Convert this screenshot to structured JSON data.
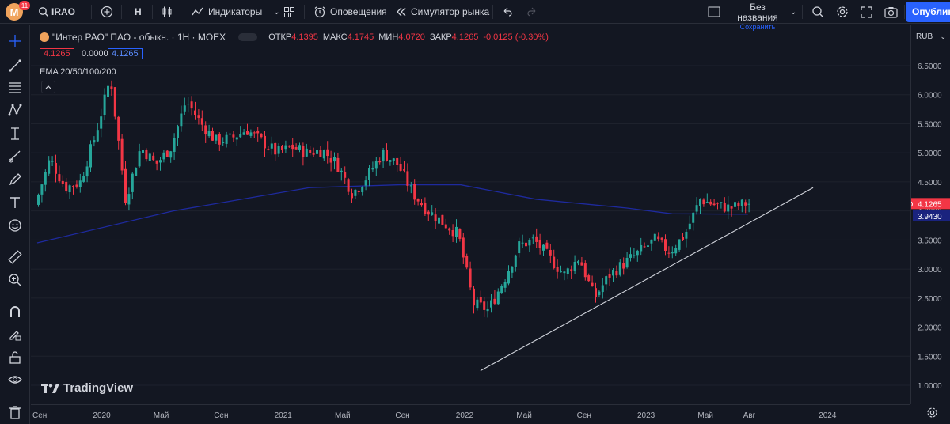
{
  "app": {
    "logo_letter": "M",
    "notif_count": "11",
    "symbol": "IRAO",
    "interval": "H",
    "indicators_label": "Индикаторы",
    "alerts_label": "Оповещения",
    "replay_label": "Симулятор рынка",
    "layout_name": "Без названия",
    "save_label": "Сохранить",
    "publish_label": "Опубликовать"
  },
  "legend": {
    "title": "\"Интер РАО\" ПАО - обыкн. · 1H · MOEX",
    "open_label": "ОТКР",
    "open": "4.1395",
    "high_label": "МАКС",
    "high": "4.1745",
    "low_label": "МИН",
    "low": "4.0720",
    "close_label": "ЗАКР",
    "close": "4.1265",
    "change": "-0.0125 (-0.30%)",
    "bid": "4.1265",
    "spread": "0.0000",
    "ask": "4.1265",
    "ema_label": "EMA 20/50/100/200"
  },
  "price_axis": {
    "currency": "RUB",
    "last_symbol": "IRAO",
    "last_price": "4.1265",
    "ema_value": "3.9430"
  },
  "colors": {
    "up": "#26a69a",
    "down": "#f23645",
    "ema": "#1e2a9e",
    "trendline": "#d1d4dc",
    "accent": "#2962ff"
  },
  "brand": "TradingView",
  "chart_data": {
    "type": "candlestick",
    "symbol": "IRAO",
    "ylim": [
      0.8,
      6.8
    ],
    "y_ticks": [
      1.0,
      1.5,
      2.0,
      2.5,
      3.0,
      3.5,
      4.0,
      4.5,
      5.0,
      5.5,
      6.0,
      6.5
    ],
    "y_tick_labels": [
      "1.0000",
      "1.5000",
      "2.0000",
      "2.5000",
      "3.0000",
      "3.5000",
      "4.0000",
      "4.5000",
      "5.0000",
      "5.5000",
      "6.0000",
      "6.5000"
    ],
    "x_labels": [
      "Сен",
      "2020",
      "Май",
      "Сен",
      "2021",
      "Май",
      "Сен",
      "2022",
      "Май",
      "Сен",
      "2023",
      "Май",
      "Авг",
      "2024"
    ],
    "close_path": [
      [
        "2019-09",
        4.1
      ],
      [
        "2019-10",
        4.9
      ],
      [
        "2019-11",
        4.4
      ],
      [
        "2019-12",
        4.5
      ],
      [
        "2020-01",
        5.3
      ],
      [
        "2020-02",
        6.3
      ],
      [
        "2020-03",
        4.2
      ],
      [
        "2020-04",
        5.1
      ],
      [
        "2020-05",
        4.8
      ],
      [
        "2020-06",
        5.1
      ],
      [
        "2020-07",
        5.9
      ],
      [
        "2020-08",
        5.5
      ],
      [
        "2020-09",
        5.2
      ],
      [
        "2020-10",
        5.25
      ],
      [
        "2020-11",
        5.4
      ],
      [
        "2020-12",
        5.2
      ],
      [
        "2021-01",
        5.0
      ],
      [
        "2021-02",
        5.1
      ],
      [
        "2021-03",
        5.0
      ],
      [
        "2021-04",
        5.05
      ],
      [
        "2021-05",
        4.8
      ],
      [
        "2021-06",
        4.3
      ],
      [
        "2021-07",
        4.6
      ],
      [
        "2021-08",
        5.0
      ],
      [
        "2021-09",
        4.8
      ],
      [
        "2021-10",
        4.3
      ],
      [
        "2021-11",
        4.0
      ],
      [
        "2021-12",
        3.8
      ],
      [
        "2022-01",
        3.6
      ],
      [
        "2022-02",
        2.4
      ],
      [
        "2022-03",
        2.3
      ],
      [
        "2022-04",
        2.8
      ],
      [
        "2022-05",
        3.4
      ],
      [
        "2022-06",
        3.5
      ],
      [
        "2022-07",
        3.2
      ],
      [
        "2022-08",
        2.9
      ],
      [
        "2022-09",
        3.2
      ],
      [
        "2022-10",
        2.5
      ],
      [
        "2022-11",
        2.9
      ],
      [
        "2022-12",
        3.1
      ],
      [
        "2023-01",
        3.3
      ],
      [
        "2023-02",
        3.5
      ],
      [
        "2023-03",
        3.3
      ],
      [
        "2023-04",
        3.6
      ],
      [
        "2023-05",
        4.2
      ],
      [
        "2023-06",
        4.1
      ],
      [
        "2023-07",
        4.05
      ],
      [
        "2023-08",
        4.1265
      ]
    ],
    "ema_200": [
      [
        "2019-09",
        3.45
      ],
      [
        "2020-06",
        4.0
      ],
      [
        "2021-03",
        4.4
      ],
      [
        "2021-09",
        4.45
      ],
      [
        "2022-01",
        4.45
      ],
      [
        "2022-06",
        4.2
      ],
      [
        "2022-12",
        4.05
      ],
      [
        "2023-03",
        3.95
      ],
      [
        "2023-08",
        3.943
      ]
    ],
    "trendline": [
      [
        "2022-02",
        1.25
      ],
      [
        "2023-12",
        4.4
      ]
    ]
  }
}
